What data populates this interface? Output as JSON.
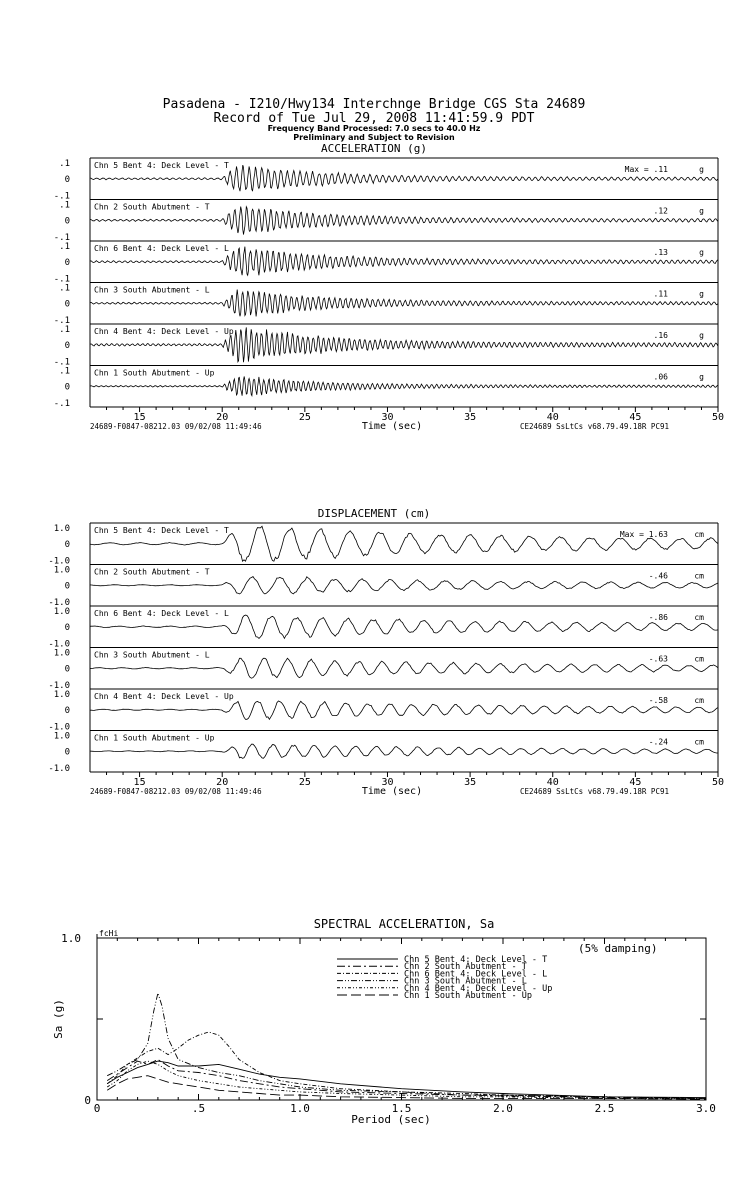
{
  "header": {
    "line1": "Pasadena - I210/Hwy134 Interchnge Bridge      CGS Sta 24689",
    "line2": "Record of Tue Jul 29, 2008 11:41:59.9 PDT",
    "line3": "Frequency Band Processed: 7.0 secs to 40.0 Hz",
    "line4": "Preliminary and Subject to Revision"
  },
  "chart_data": [
    {
      "type": "line",
      "title": "ACCELERATION (g)",
      "xlabel": "Time (sec)",
      "xlim": [
        12,
        50
      ],
      "xticks": [
        15,
        20,
        25,
        30,
        35,
        40,
        45,
        50
      ],
      "ytick_labels": [
        ".1",
        "0",
        "-.1"
      ],
      "footer_left": "24689-F0847-08212.03 09/02/08 11:49:46",
      "footer_right": "CE24689  SsLtCs  v68.79.49.18R PC91",
      "unit": "g",
      "series": [
        {
          "name": "Chn 5  Bent 4: Deck Level - T",
          "max_label": "Max =  .11",
          "peak": 0.11
        },
        {
          "name": "Chn 2  South Abutment - T",
          "max_label": ".12",
          "peak": 0.12
        },
        {
          "name": "Chn 6  Bent 4: Deck Level - L",
          "max_label": ".13",
          "peak": 0.13
        },
        {
          "name": "Chn 3  South Abutment - L",
          "max_label": ".11",
          "peak": 0.11
        },
        {
          "name": "Chn 4  Bent 4: Deck Level - Up",
          "max_label": ".16",
          "peak": 0.16
        },
        {
          "name": "Chn 1  South Abutment - Up",
          "max_label": ".06",
          "peak": 0.06
        }
      ]
    },
    {
      "type": "line",
      "title": "DISPLACEMENT (cm)",
      "xlabel": "Time (sec)",
      "xlim": [
        12,
        50
      ],
      "xticks": [
        15,
        20,
        25,
        30,
        35,
        40,
        45,
        50
      ],
      "ytick_labels": [
        "1.0",
        "0",
        "-1.0"
      ],
      "footer_left": "24689-F0847-08212.03 09/02/08 11:49:46",
      "footer_right": "CE24689  SsLtCs  v68.79.49.18R PC91",
      "unit": "cm",
      "series": [
        {
          "name": "Chn 5  Bent 4: Deck Level - T",
          "max_label": "Max =  1.63",
          "peak": 1.63
        },
        {
          "name": "Chn 2  South Abutment - T",
          "max_label": "-.46",
          "peak": -0.46
        },
        {
          "name": "Chn 6  Bent 4: Deck Level - L",
          "max_label": "-.86",
          "peak": -0.86
        },
        {
          "name": "Chn 3  South Abutment - L",
          "max_label": "-.63",
          "peak": -0.63
        },
        {
          "name": "Chn 4  Bent 4: Deck Level - Up",
          "max_label": "-.58",
          "peak": -0.58
        },
        {
          "name": "Chn 1  South Abutment - Up",
          "max_label": "-.24",
          "peak": -0.24
        }
      ]
    },
    {
      "type": "line",
      "title": "SPECTRAL ACCELERATION, Sa",
      "xlabel": "Period (sec)",
      "ylabel": "Sa (g)",
      "xlim": [
        0,
        3.0
      ],
      "ylim": [
        0,
        1.0
      ],
      "xtick_labels": [
        "0",
        ".5",
        "1.0",
        "1.5",
        "2.0",
        "2.5",
        "3.0"
      ],
      "ytick_labels": [
        "1.0",
        "0"
      ],
      "annotation": "(5% damping)",
      "marker_label": "fcHi",
      "series": [
        {
          "name": "Chn 5  Bent 4: Deck Level - T",
          "dash": "none",
          "x": [
            0.05,
            0.1,
            0.15,
            0.2,
            0.25,
            0.3,
            0.35,
            0.4,
            0.5,
            0.6,
            0.7,
            0.8,
            0.9,
            1.0,
            1.2,
            1.5,
            1.8,
            2.0,
            2.5,
            3.0
          ],
          "y": [
            0.1,
            0.14,
            0.17,
            0.2,
            0.22,
            0.24,
            0.23,
            0.21,
            0.21,
            0.22,
            0.19,
            0.16,
            0.14,
            0.13,
            0.1,
            0.07,
            0.05,
            0.04,
            0.02,
            0.015
          ]
        },
        {
          "name": "Chn 2  South Abutment - T",
          "dash": "8 3 2 3",
          "x": [
            0.05,
            0.1,
            0.15,
            0.2,
            0.25,
            0.3,
            0.35,
            0.4,
            0.5,
            0.6,
            0.7,
            0.8,
            0.9,
            1.0,
            1.2,
            1.5,
            1.8,
            2.0,
            2.5,
            3.0
          ],
          "y": [
            0.12,
            0.16,
            0.2,
            0.24,
            0.22,
            0.25,
            0.21,
            0.18,
            0.17,
            0.15,
            0.12,
            0.1,
            0.08,
            0.07,
            0.05,
            0.04,
            0.03,
            0.025,
            0.015,
            0.01
          ]
        },
        {
          "name": "Chn 6  Bent 4: Deck Level - L",
          "dash": "4 2 1 2",
          "x": [
            0.05,
            0.1,
            0.15,
            0.2,
            0.25,
            0.3,
            0.35,
            0.4,
            0.45,
            0.5,
            0.55,
            0.6,
            0.65,
            0.7,
            0.8,
            0.9,
            1.0,
            1.2,
            1.5,
            1.8,
            2.0,
            2.5,
            3.0
          ],
          "y": [
            0.1,
            0.15,
            0.22,
            0.26,
            0.3,
            0.32,
            0.28,
            0.32,
            0.37,
            0.4,
            0.42,
            0.4,
            0.33,
            0.25,
            0.17,
            0.12,
            0.1,
            0.07,
            0.05,
            0.04,
            0.03,
            0.02,
            0.01
          ]
        },
        {
          "name": "Chn 3  South Abutment - L",
          "dash": "6 2 1 2 1 2",
          "x": [
            0.05,
            0.1,
            0.15,
            0.2,
            0.25,
            0.28,
            0.3,
            0.32,
            0.35,
            0.4,
            0.5,
            0.6,
            0.7,
            0.8,
            0.9,
            1.0,
            1.2,
            1.5,
            1.8,
            2.0,
            2.5,
            3.0
          ],
          "y": [
            0.15,
            0.18,
            0.22,
            0.25,
            0.35,
            0.55,
            0.66,
            0.58,
            0.38,
            0.25,
            0.2,
            0.17,
            0.15,
            0.12,
            0.1,
            0.08,
            0.06,
            0.05,
            0.03,
            0.03,
            0.02,
            0.01
          ]
        },
        {
          "name": "Chn 4  Bent 4: Deck Level - Up",
          "dash": "3 2 1 2 1 2",
          "x": [
            0.05,
            0.1,
            0.15,
            0.2,
            0.25,
            0.3,
            0.35,
            0.4,
            0.5,
            0.6,
            0.7,
            0.8,
            0.9,
            1.0,
            1.2,
            1.5,
            1.8,
            2.0,
            2.5,
            3.0
          ],
          "y": [
            0.08,
            0.12,
            0.18,
            0.22,
            0.24,
            0.22,
            0.18,
            0.15,
            0.12,
            0.1,
            0.08,
            0.07,
            0.06,
            0.05,
            0.04,
            0.03,
            0.02,
            0.02,
            0.01,
            0.01
          ]
        },
        {
          "name": "Chn 1  South Abutment - Up",
          "dash": "10 4",
          "x": [
            0.05,
            0.1,
            0.15,
            0.2,
            0.25,
            0.3,
            0.35,
            0.4,
            0.5,
            0.6,
            0.7,
            0.8,
            0.9,
            1.0,
            1.2,
            1.5,
            1.8,
            2.0,
            2.5,
            3.0
          ],
          "y": [
            0.06,
            0.1,
            0.13,
            0.14,
            0.15,
            0.13,
            0.11,
            0.1,
            0.08,
            0.06,
            0.05,
            0.04,
            0.03,
            0.03,
            0.02,
            0.015,
            0.01,
            0.01,
            0.01,
            0.005
          ]
        }
      ]
    }
  ]
}
